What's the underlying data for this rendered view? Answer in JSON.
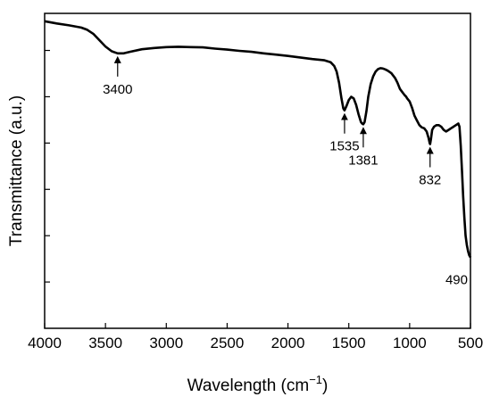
{
  "chart_data": {
    "type": "line",
    "xlabel": "Wavelength (cm",
    "xlabel_sup": "−1",
    "xlabel_close": ")",
    "ylabel": "Transmittance (a.u.)",
    "xlim": [
      4000,
      500
    ],
    "ylim": [
      0,
      100
    ],
    "x_ticks": [
      "4000",
      "3500",
      "3000",
      "2500",
      "2000",
      "1500",
      "1000",
      "500"
    ],
    "y_tick_count": 6,
    "y_tick_labels_shown": false,
    "grid": false,
    "series": [
      {
        "color": "#000000",
        "points": [
          [
            4000,
            97.5
          ],
          [
            3900,
            96.8
          ],
          [
            3800,
            96.2
          ],
          [
            3700,
            95.5
          ],
          [
            3650,
            94.8
          ],
          [
            3600,
            93.5
          ],
          [
            3550,
            91.5
          ],
          [
            3500,
            89.5
          ],
          [
            3450,
            88.0
          ],
          [
            3400,
            87.3
          ],
          [
            3350,
            87.3
          ],
          [
            3300,
            87.8
          ],
          [
            3200,
            88.6
          ],
          [
            3100,
            89.0
          ],
          [
            3000,
            89.3
          ],
          [
            2900,
            89.4
          ],
          [
            2800,
            89.3
          ],
          [
            2700,
            89.2
          ],
          [
            2600,
            88.8
          ],
          [
            2500,
            88.5
          ],
          [
            2400,
            88.1
          ],
          [
            2300,
            87.8
          ],
          [
            2200,
            87.3
          ],
          [
            2100,
            86.9
          ],
          [
            2000,
            86.5
          ],
          [
            1900,
            86.0
          ],
          [
            1800,
            85.5
          ],
          [
            1700,
            85.1
          ],
          [
            1650,
            84.5
          ],
          [
            1620,
            83.3
          ],
          [
            1600,
            81.5
          ],
          [
            1580,
            78.0
          ],
          [
            1560,
            73.0
          ],
          [
            1545,
            69.8
          ],
          [
            1535,
            69.2
          ],
          [
            1520,
            70.5
          ],
          [
            1500,
            72.5
          ],
          [
            1480,
            73.5
          ],
          [
            1460,
            73.0
          ],
          [
            1440,
            71.0
          ],
          [
            1420,
            68.0
          ],
          [
            1400,
            65.5
          ],
          [
            1390,
            65.0
          ],
          [
            1381,
            64.8
          ],
          [
            1370,
            65.5
          ],
          [
            1355,
            69.0
          ],
          [
            1340,
            73.5
          ],
          [
            1320,
            77.5
          ],
          [
            1300,
            80.0
          ],
          [
            1280,
            81.5
          ],
          [
            1260,
            82.3
          ],
          [
            1240,
            82.6
          ],
          [
            1220,
            82.5
          ],
          [
            1200,
            82.2
          ],
          [
            1180,
            81.8
          ],
          [
            1150,
            81.0
          ],
          [
            1120,
            79.5
          ],
          [
            1100,
            78.0
          ],
          [
            1080,
            76.0
          ],
          [
            1060,
            75.0
          ],
          [
            1050,
            74.5
          ],
          [
            1040,
            74.0
          ],
          [
            1030,
            73.6
          ],
          [
            1020,
            73.0
          ],
          [
            1000,
            72.0
          ],
          [
            980,
            70.0
          ],
          [
            960,
            67.5
          ],
          [
            940,
            66.0
          ],
          [
            920,
            64.5
          ],
          [
            900,
            63.8
          ],
          [
            880,
            63.5
          ],
          [
            860,
            62.5
          ],
          [
            845,
            60.5
          ],
          [
            835,
            58.8
          ],
          [
            832,
            58.5
          ],
          [
            825,
            60.0
          ],
          [
            815,
            63.0
          ],
          [
            800,
            64.0
          ],
          [
            780,
            64.5
          ],
          [
            760,
            64.5
          ],
          [
            740,
            64.0
          ],
          [
            720,
            63.0
          ],
          [
            700,
            62.5
          ],
          [
            680,
            63.0
          ],
          [
            660,
            63.5
          ],
          [
            640,
            64.0
          ],
          [
            620,
            64.5
          ],
          [
            600,
            65.0
          ],
          [
            590,
            64.0
          ],
          [
            580,
            58.0
          ],
          [
            570,
            50.0
          ],
          [
            560,
            42.0
          ],
          [
            550,
            35.0
          ],
          [
            540,
            29.5
          ],
          [
            530,
            26.5
          ],
          [
            520,
            24.5
          ],
          [
            510,
            23.2
          ],
          [
            500,
            22.5
          ]
        ]
      }
    ],
    "annotations": [
      {
        "label": "3400",
        "x": 3400,
        "y": 87.3,
        "direction": "below"
      },
      {
        "label": "1535",
        "x": 1535,
        "y": 69.2,
        "direction": "below"
      },
      {
        "label": "1381",
        "x": 1381,
        "y": 64.8,
        "direction": "below"
      },
      {
        "label": "832",
        "x": 832,
        "y": 58.5,
        "direction": "below"
      },
      {
        "label": "490",
        "x": 500,
        "y": 22.5,
        "direction": "none"
      }
    ]
  }
}
